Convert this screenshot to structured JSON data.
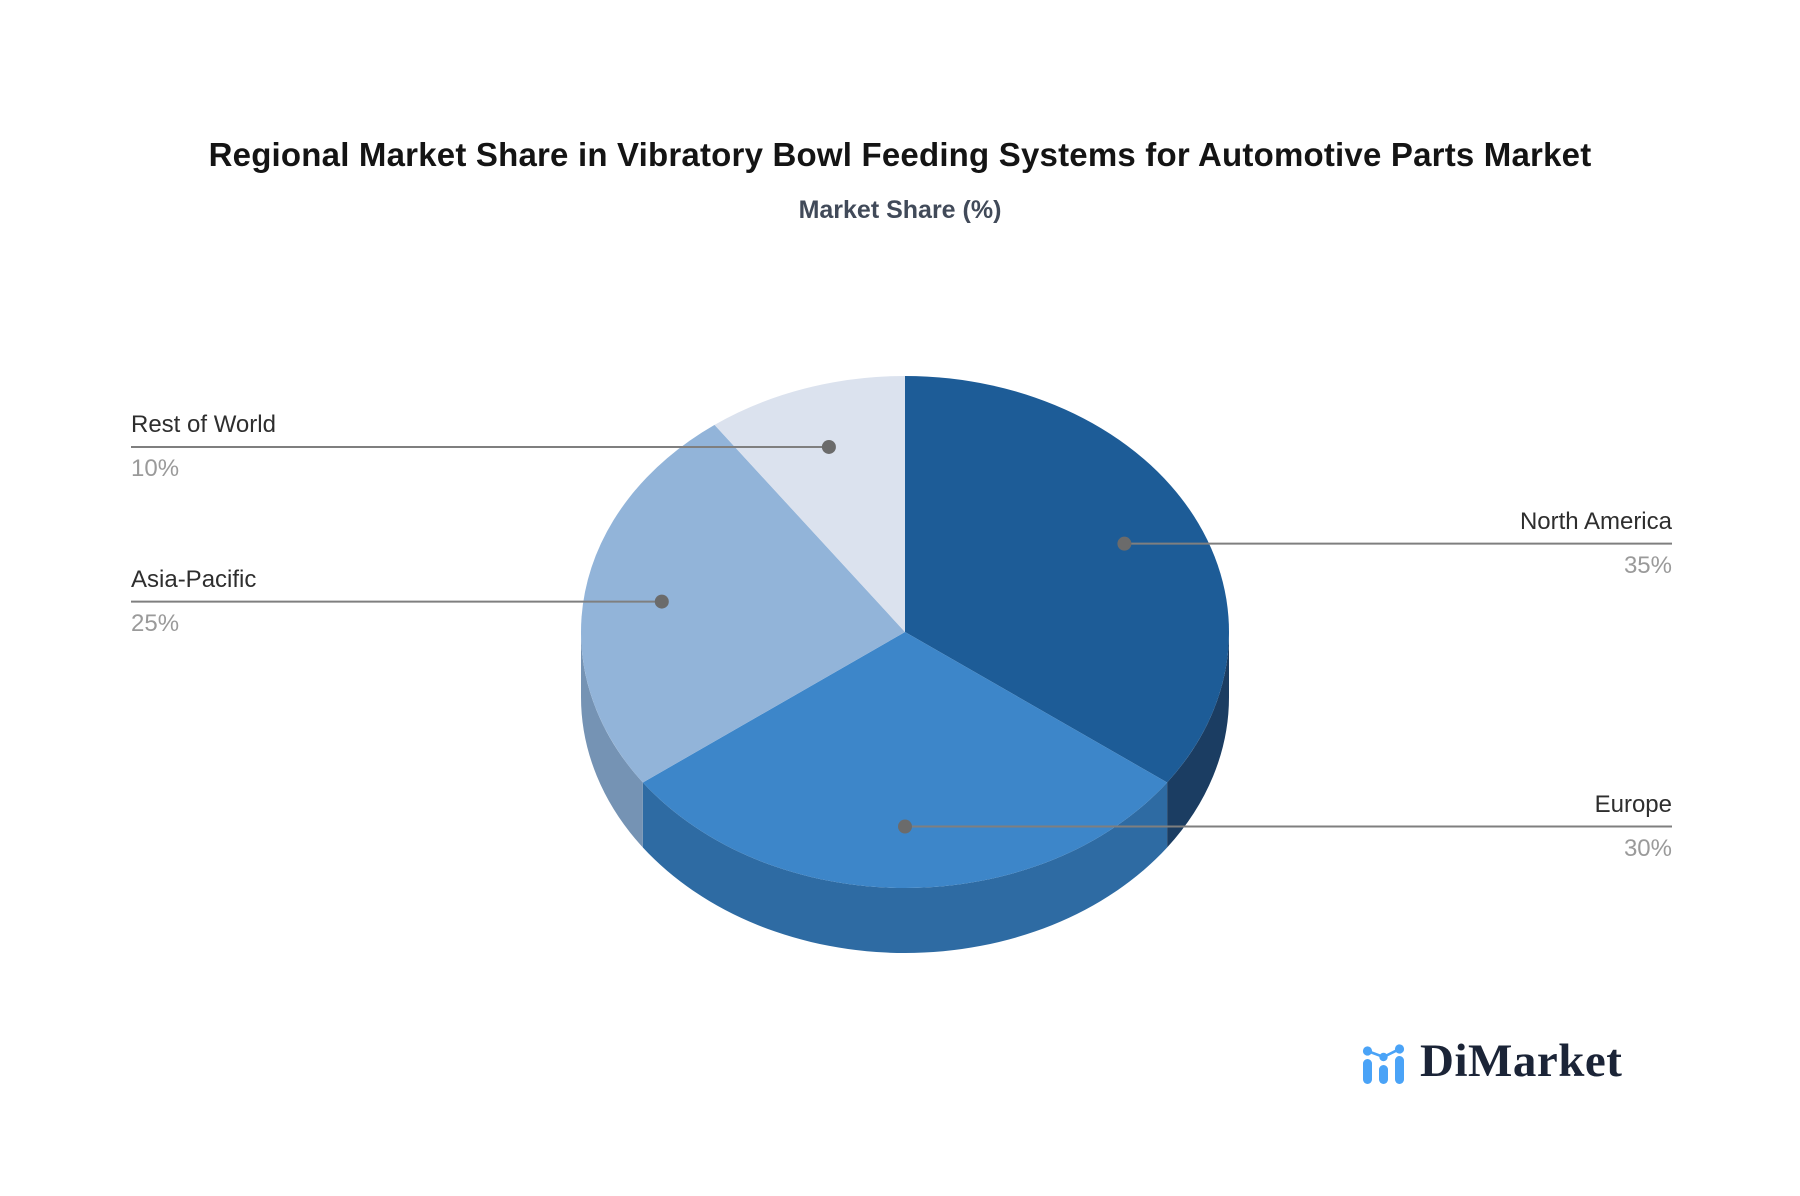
{
  "header": {
    "title": "Regional Market Share in Vibratory Bowl Feeding Systems for Automotive Parts Market",
    "subtitle": "Market Share (%)"
  },
  "chart_data": {
    "type": "pie",
    "title": "Regional Market Share in Vibratory Bowl Feeding Systems for Automotive Parts Market",
    "subtitle": "Market Share (%)",
    "unit": "%",
    "effect": "3d",
    "direction": "clockwise",
    "start_angle_deg": 0,
    "slices": [
      {
        "name": "North America",
        "value": 35,
        "pct_label": "35%",
        "color": "#1D5C97",
        "side_color": "#1B3D62"
      },
      {
        "name": "Europe",
        "value": 30,
        "pct_label": "30%",
        "color": "#3D86C9",
        "side_color": "#2E6BA3"
      },
      {
        "name": "Asia-Pacific",
        "value": 25,
        "pct_label": "25%",
        "color": "#92B4D9",
        "side_color": "#7593B4"
      },
      {
        "name": "Rest of World",
        "value": 10,
        "pct_label": "10%",
        "color": "#DBE2EE",
        "side_color": "#B8C3D6"
      }
    ],
    "legend_position": "none",
    "grid": false,
    "label_text_color": "#2E2E2E",
    "pct_text_color": "#9A9A9A",
    "leader_line_color": "#7F7F7F",
    "leader_dot_color": "#6B6B6B"
  },
  "branding": {
    "logo_text": "DiMarket",
    "logo_text_color": "#1B2437",
    "logo_icon_color": "#4AA3F7",
    "logo_icon": "bar-chart-with-dots"
  }
}
